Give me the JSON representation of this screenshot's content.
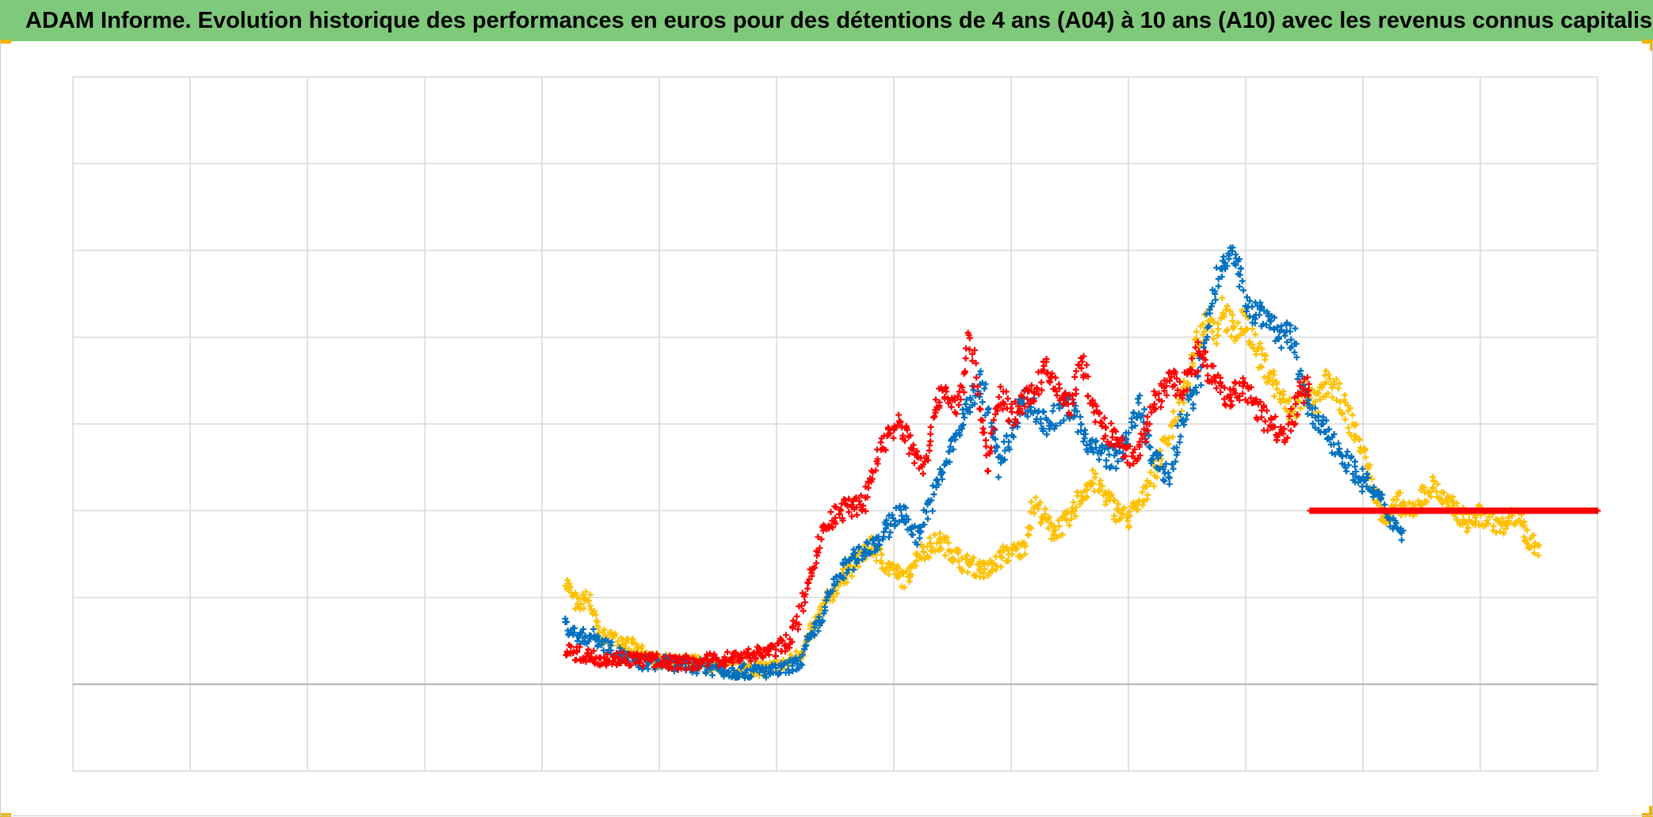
{
  "header": {
    "title": "ADAM Informe. Evolution historique des performances en euros pour des détentions de 4 ans (A04) à 10 ans (A10) avec les revenus connus capitalisés"
  },
  "colors": {
    "banner": "#7fc97a",
    "accent_corner": "#f0b400",
    "grid": "#d9d9d9",
    "baseline": "#b0b0b0"
  },
  "chart_data": {
    "type": "scatter",
    "marker": "plus",
    "grid": true,
    "legend": "none",
    "x_cells": 13,
    "y_cells": 8,
    "baseline_row": 7,
    "series": [
      {
        "color": "#ffc000",
        "x": [
          4.2,
          4.3,
          4.4,
          4.45,
          4.5,
          4.7,
          4.9,
          5.1,
          5.3,
          5.5,
          5.7,
          5.9,
          6.0,
          6.1,
          6.2,
          6.3,
          6.4,
          6.6,
          6.8,
          6.95,
          7.1,
          7.2,
          7.4,
          7.6,
          7.8,
          7.95,
          8.1,
          8.2,
          8.35,
          8.5,
          8.6,
          8.7,
          8.9,
          9.0,
          9.1,
          9.2,
          9.3,
          9.4,
          9.5,
          9.6,
          9.7,
          9.75,
          9.8,
          9.9,
          10.0,
          10.1,
          10.2,
          10.3,
          10.4,
          10.5,
          10.6,
          10.7,
          10.8,
          10.9,
          11.0,
          11.1,
          11.2,
          11.3,
          11.4,
          11.5,
          11.6,
          11.7,
          11.8,
          11.9,
          12.0,
          12.1,
          12.2,
          12.3,
          12.4,
          12.5
        ],
        "y": [
          2.2,
          1.9,
          2.0,
          1.75,
          1.55,
          1.5,
          1.3,
          1.25,
          1.25,
          1.2,
          1.18,
          1.18,
          1.2,
          1.25,
          1.35,
          1.6,
          1.9,
          2.3,
          2.6,
          2.35,
          2.2,
          2.5,
          2.65,
          2.4,
          2.3,
          2.5,
          2.55,
          3.1,
          2.75,
          2.9,
          3.2,
          3.35,
          3.0,
          2.9,
          3.1,
          3.4,
          3.7,
          4.1,
          4.5,
          5.0,
          5.3,
          5.0,
          5.4,
          5.0,
          5.2,
          4.8,
          4.6,
          4.3,
          4.1,
          4.4,
          4.2,
          4.5,
          4.3,
          4.0,
          3.7,
          3.2,
          2.9,
          3.1,
          2.95,
          3.15,
          3.3,
          3.1,
          3.0,
          2.85,
          2.95,
          2.9,
          2.8,
          2.95,
          2.7,
          2.55
        ]
      },
      {
        "color": "#0070c0",
        "x": [
          4.2,
          4.3,
          4.45,
          4.6,
          4.8,
          5.0,
          5.2,
          5.4,
          5.6,
          5.8,
          6.0,
          6.1,
          6.2,
          6.3,
          6.4,
          6.5,
          6.7,
          6.9,
          7.05,
          7.2,
          7.4,
          7.6,
          7.75,
          7.9,
          8.1,
          8.3,
          8.5,
          8.7,
          8.9,
          9.0,
          9.1,
          9.2,
          9.35,
          9.45,
          9.6,
          9.7,
          9.8,
          9.85,
          9.95,
          10.05,
          10.15,
          10.3,
          10.4,
          10.55,
          10.7,
          10.9,
          11.1,
          11.25,
          11.35
        ],
        "y": [
          1.7,
          1.55,
          1.55,
          1.4,
          1.25,
          1.25,
          1.22,
          1.2,
          1.15,
          1.15,
          1.15,
          1.2,
          1.25,
          1.55,
          1.8,
          2.2,
          2.5,
          2.7,
          3.0,
          2.7,
          3.4,
          4.1,
          4.5,
          3.5,
          4.3,
          4.0,
          4.2,
          3.7,
          3.6,
          3.9,
          4.2,
          3.6,
          3.4,
          4.0,
          4.5,
          5.3,
          5.9,
          6.0,
          5.7,
          5.3,
          5.3,
          5.0,
          5.0,
          4.1,
          3.9,
          3.5,
          3.2,
          2.9,
          2.7
        ]
      },
      {
        "color": "#ff0000",
        "x": [
          4.2,
          4.3,
          4.5,
          4.7,
          4.9,
          5.1,
          5.3,
          5.6,
          5.8,
          6.0,
          6.1,
          6.2,
          6.3,
          6.4,
          6.55,
          6.75,
          6.9,
          7.05,
          7.25,
          7.4,
          7.55,
          7.65,
          7.8,
          7.9,
          8.0,
          8.15,
          8.3,
          8.5,
          8.6,
          8.75,
          8.9,
          9.0,
          9.1,
          9.2,
          9.35,
          9.45,
          9.6,
          9.7,
          9.85,
          10.0,
          10.2,
          10.35,
          10.45,
          10.55
        ],
        "y": [
          1.4,
          1.35,
          1.3,
          1.3,
          1.28,
          1.25,
          1.25,
          1.3,
          1.35,
          1.4,
          1.5,
          1.8,
          2.3,
          2.8,
          3.0,
          3.1,
          3.8,
          4.0,
          3.5,
          4.4,
          4.2,
          5.0,
          3.5,
          4.4,
          4.1,
          4.3,
          4.6,
          4.2,
          4.7,
          4.0,
          3.8,
          3.6,
          3.7,
          4.2,
          4.5,
          4.4,
          4.8,
          4.6,
          4.3,
          4.4,
          4.0,
          3.9,
          4.3,
          4.5
        ]
      },
      {
        "color": "#ff0000",
        "x": [
          10.55,
          13.0
        ],
        "y": [
          3.0,
          3.0
        ]
      }
    ]
  }
}
